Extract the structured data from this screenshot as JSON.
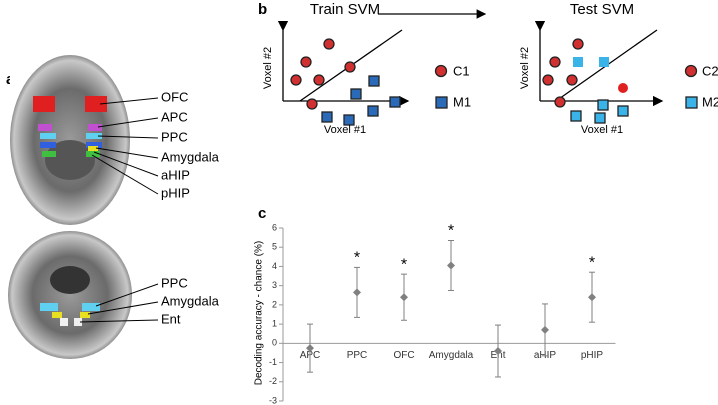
{
  "panel_a": {
    "label": "a",
    "regions_axial": [
      "OFC",
      "APC",
      "PPC",
      "Amygdala",
      "aHIP",
      "pHIP"
    ],
    "regions_coronal": [
      "PPC",
      "Amygdala",
      "Ent"
    ]
  },
  "panel_b": {
    "label": "b",
    "train_title": "Train SVM",
    "test_title": "Test SVM",
    "x_label": "Voxel #1",
    "y_label": "Voxel #2",
    "train_legend": [
      "C1",
      "M1"
    ],
    "test_legend": [
      "C2",
      "M2"
    ]
  },
  "chart_data": {
    "type": "errorbar",
    "label": "c",
    "y_label": "Decoding accuracy - chance (%)",
    "categories": [
      "APC",
      "PPC",
      "OFC",
      "Amygdala",
      "Ent",
      "aHIP",
      "pHIP"
    ],
    "values": [
      -0.25,
      2.65,
      2.4,
      4.05,
      -0.4,
      0.7,
      2.4
    ],
    "errors": [
      1.25,
      1.3,
      1.2,
      1.3,
      1.35,
      1.35,
      1.3
    ],
    "significant": [
      false,
      true,
      true,
      true,
      false,
      false,
      true
    ],
    "significance_marker": "*",
    "color": "#808080",
    "ylim": [
      -3,
      6
    ],
    "yticks": [
      -3,
      -2,
      -1,
      0,
      1,
      2,
      3,
      4,
      5,
      6
    ]
  }
}
